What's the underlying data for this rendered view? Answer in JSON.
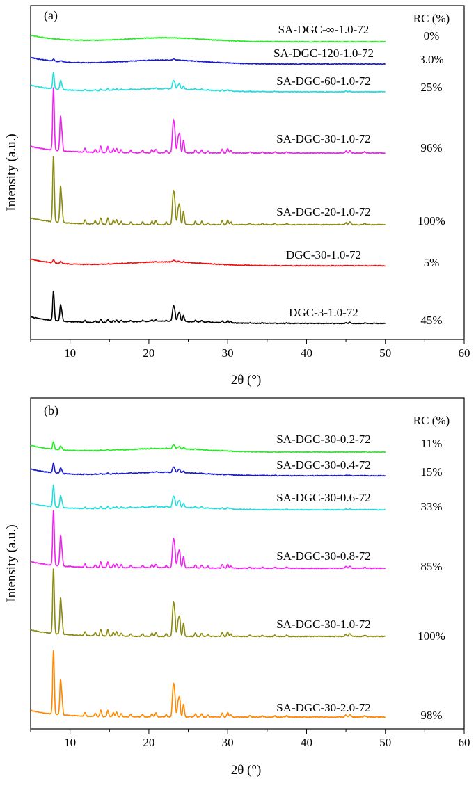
{
  "chart_data": [
    {
      "type": "line",
      "panel_label": "(a)",
      "xlabel": "2θ (°)",
      "ylabel": "Intensity (a.u.)",
      "xlim": [
        5,
        60
      ],
      "xticks": [
        10,
        20,
        30,
        40,
        50,
        60
      ],
      "rc_header": "RC (%)",
      "series": [
        {
          "name": "SA-DGC-∞-1.0-72",
          "rc": "0%",
          "color": "#22ee22",
          "intensity": 0
        },
        {
          "name": "SA-DGC-120-1.0-72",
          "rc": "3.0%",
          "color": "#1a1acc",
          "intensity": 0.03
        },
        {
          "name": "SA-DGC-60-1.0-72",
          "rc": "25%",
          "color": "#22dddd",
          "intensity": 0.25
        },
        {
          "name": "SA-DGC-30-1.0-72",
          "rc": "96%",
          "color": "#ee22ee",
          "intensity": 0.96
        },
        {
          "name": "SA-DGC-20-1.0-72",
          "rc": "100%",
          "color": "#8a8a10",
          "intensity": 1.0
        },
        {
          "name": "DGC-30-1.0-72",
          "rc": "5%",
          "color": "#ee1111",
          "intensity": 0.05
        },
        {
          "name": "DGC-3-1.0-72",
          "rc": "45%",
          "color": "#000000",
          "intensity": 0.45
        }
      ]
    },
    {
      "type": "line",
      "panel_label": "(b)",
      "xlabel": "2θ (°)",
      "ylabel": "Intensity (a.u.)",
      "xlim": [
        5,
        60
      ],
      "xticks": [
        10,
        20,
        30,
        40,
        50,
        60
      ],
      "rc_header": "RC (%)",
      "series": [
        {
          "name": "SA-DGC-30-0.2-72",
          "rc": "11%",
          "color": "#22ee22",
          "intensity": 0.11
        },
        {
          "name": "SA-DGC-30-0.4-72",
          "rc": "15%",
          "color": "#1a1acc",
          "intensity": 0.15
        },
        {
          "name": "SA-DGC-30-0.6-72",
          "rc": "33%",
          "color": "#22dddd",
          "intensity": 0.33
        },
        {
          "name": "SA-DGC-30-0.8-72",
          "rc": "85%",
          "color": "#ee22ee",
          "intensity": 0.85
        },
        {
          "name": "SA-DGC-30-1.0-72",
          "rc": "100%",
          "color": "#8a8a10",
          "intensity": 1.0
        },
        {
          "name": "SA-DGC-30-2.0-72",
          "rc": "98%",
          "color": "#ff8800",
          "intensity": 0.98
        }
      ]
    }
  ]
}
